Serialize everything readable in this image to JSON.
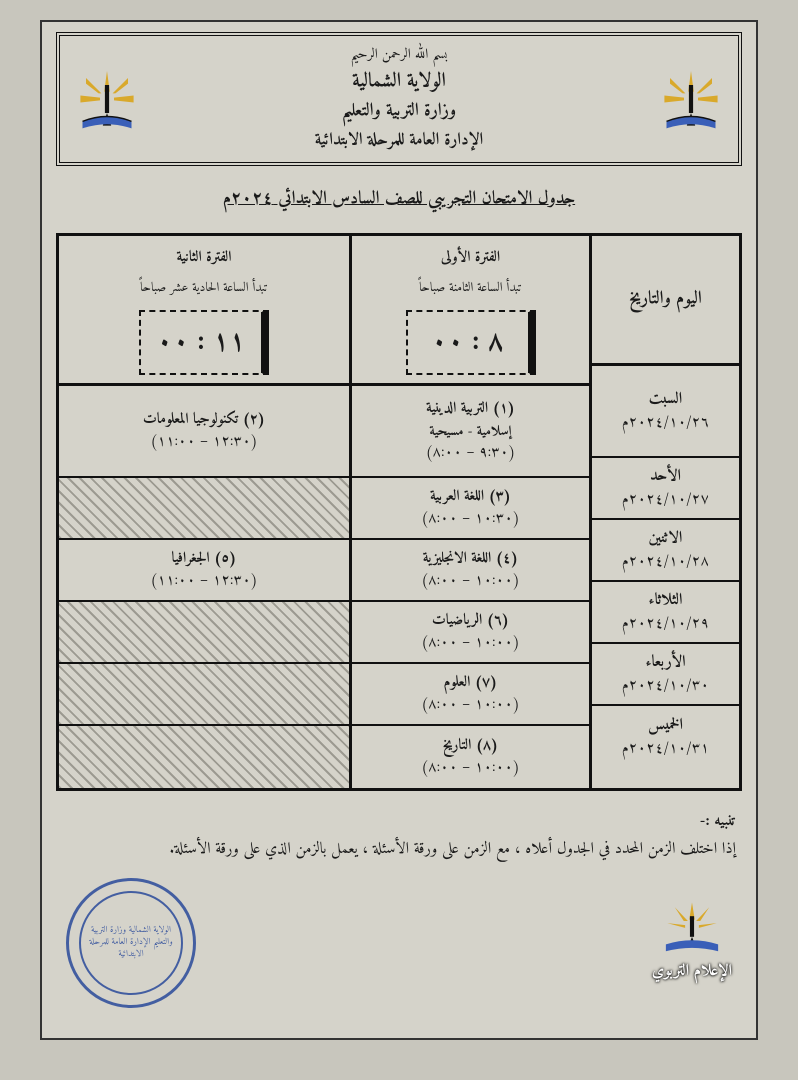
{
  "page_bg": "#c8c6bd",
  "paper_bg": "#d5d3ca",
  "text_color": "#1a1a1a",
  "border_color": "#111111",
  "stamp_color": "#2a4a9a",
  "hatch_fg": "#9c9a91",
  "header": {
    "bismillah": "بسم الله الرحمن الرحيم",
    "line1": "الولاية الشمالية",
    "line2": "وزارة التربية والتعليم",
    "line3": "الإدارة العامة للمرحلة الابتدائية"
  },
  "title": "جدول الامتحان التجريبي للصف السادس الابتدائي ٢٠٢٤م",
  "columns": {
    "date_header": "اليوم والتاريخ",
    "period1": {
      "title": "الفترة الأولى",
      "sub": "تبدأ الساعة الثامنة صباحاً",
      "clock": "٨ : ٠٠"
    },
    "period2": {
      "title": "الفترة الثانية",
      "sub": "تبدأ الساعة الحادية عشر صباحاً",
      "clock": "١١ : ٠٠"
    }
  },
  "rows": [
    {
      "day": "السبت",
      "date": "٢٠٢٤/١٠/٢٦م",
      "p1": {
        "num": "(١)",
        "name": "التربية الدينية",
        "extra": "إسلامية - مسيحية",
        "time": "(٩:٣٠ – ٨:٠٠)"
      },
      "p2": {
        "num": "(٢)",
        "name": "تكنولوجيا المعلومات",
        "time": "(١٢:٣٠ – ١١:٠٠)",
        "hatched": false
      },
      "tall": true
    },
    {
      "day": "الأحد",
      "date": "٢٠٢٤/١٠/٢٧م",
      "p1": {
        "num": "(٣)",
        "name": "اللغة العربية",
        "time": "(١٠:٣٠ – ٨:٠٠)"
      },
      "p2": {
        "hatched": true
      },
      "tall": false
    },
    {
      "day": "الاثنين",
      "date": "٢٠٢٤/١٠/٢٨م",
      "p1": {
        "num": "(٤)",
        "name": "اللغة الانجليزية",
        "time": "(١٠:٠٠ – ٨:٠٠)"
      },
      "p2": {
        "num": "(٥)",
        "name": "الجغرافيا",
        "time": "(١٢:٣٠ – ١١:٠٠)",
        "hatched": false
      },
      "tall": false
    },
    {
      "day": "الثلاثاء",
      "date": "٢٠٢٤/١٠/٢٩م",
      "p1": {
        "num": "(٦)",
        "name": "الرياضيات",
        "time": "(١٠:٠٠ – ٨:٠٠)"
      },
      "p2": {
        "hatched": true
      },
      "tall": false
    },
    {
      "day": "الأربعاء",
      "date": "٢٠٢٤/١٠/٣٠م",
      "p1": {
        "num": "(٧)",
        "name": "العلوم",
        "time": "(١٠:٠٠ – ٨:٠٠)"
      },
      "p2": {
        "hatched": true
      },
      "tall": false
    },
    {
      "day": "الخميس",
      "date": "٢٠٢٤/١٠/٣١م",
      "p1": {
        "num": "(٨)",
        "name": "التاريخ",
        "time": "(١٠:٠٠ – ٨:٠٠)"
      },
      "p2": {
        "hatched": true
      },
      "tall": false
    }
  ],
  "notice": {
    "title": "تنبيه :-",
    "body": "إذا اختلف الزمن المحدد في الجدول أعلاه ، مع الزمن على ورقة الأسئلة ، يعمل بالزمن الذي على ورقة الأسئلة."
  },
  "footer": {
    "stamp_text": "الولاية الشمالية\nوزارة التربية والتعليم\nالإدارة العامة للمرحلة الابتدائية",
    "media_label": "الإعلام التربوي"
  },
  "logo_svg_colors": {
    "rays": "#d9a92b",
    "pen": "#111111",
    "book": "#3a5fb8"
  }
}
